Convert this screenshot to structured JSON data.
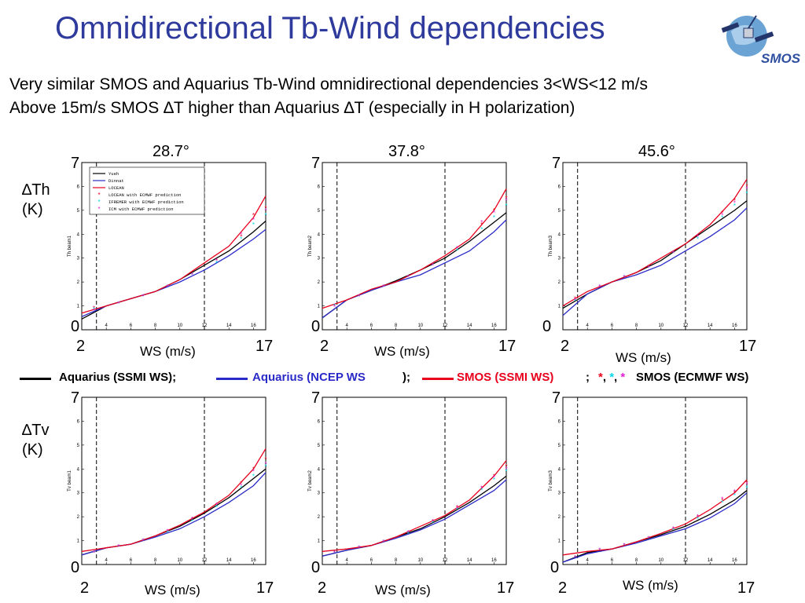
{
  "title": "Omnidirectional Tb-Wind dependencies",
  "logo_text": "SMOS",
  "subtitle1": "Very similar SMOS and Aquarius Tb-Wind omnidirectional dependencies 3<WS<12 m/s",
  "subtitle2": "Above 15m/s SMOS ∆T higher than Aquarius ∆T (especially in H polarization)",
  "angles": [
    "28.7°",
    "37.8°",
    "45.6°"
  ],
  "row_labels": {
    "th": "∆Th",
    "tv": "∆Tv",
    "unit": "(K)"
  },
  "axis_big": {
    "y_top": "7",
    "y_bottom": "0",
    "x_left": "2",
    "x_right": "17",
    "xlabel": "WS (m/s)"
  },
  "legend": {
    "aq_ssmi": "Aquarius (SSMI WS);",
    "aq_ncep": "Aquarius (NCEP WS",
    "aq_ncep_end": ");",
    "smos_ssmi": "SMOS (SSMI WS)",
    "semi": ";",
    "stars": "*, *, *",
    "smos_ecmwf": "SMOS (ECMWF WS)",
    "colors": {
      "black": "#000000",
      "blue": "#2a2ac8",
      "red": "#e8001c",
      "cyan": "#00d8e8",
      "magenta": "#e020d0"
    }
  },
  "inner_legend": [
    "Yueh",
    "Dinnat",
    "LOCEAN",
    "LOCEAN with ECMWF prediction",
    "IFREMER with ECMWF prediction",
    "ICM with ECMWF prediction"
  ],
  "chart_data": [
    {
      "type": "line",
      "polarization": "H",
      "angle": "28.7°",
      "xlim": [
        2,
        17
      ],
      "ylim": [
        0,
        7
      ],
      "ylabel": "Th beam1",
      "vlines": [
        3.2,
        12
      ],
      "x": [
        2,
        4,
        6,
        8,
        10,
        12,
        14,
        16,
        17
      ],
      "series": [
        {
          "name": "Yueh",
          "color": "#000000",
          "values": [
            0.45,
            1.0,
            1.3,
            1.6,
            2.1,
            2.7,
            3.3,
            4.1,
            4.55
          ]
        },
        {
          "name": "Dinnat",
          "color": "#2a2ac8",
          "values": [
            0.55,
            1.0,
            1.3,
            1.6,
            2.0,
            2.5,
            3.1,
            3.8,
            4.2
          ]
        },
        {
          "name": "LOCEAN",
          "color": "#e8001c",
          "values": [
            0.7,
            1.0,
            1.3,
            1.6,
            2.1,
            2.8,
            3.5,
            4.7,
            5.6
          ]
        }
      ],
      "points": [
        {
          "name": "LOCEAN with ECMWF prediction",
          "color": "#e8001c",
          "x": [
            3,
            5,
            7,
            9,
            11,
            13,
            15,
            16,
            17
          ],
          "y": [
            0.9,
            1.1,
            1.4,
            1.8,
            2.3,
            2.9,
            3.9,
            4.8,
            5.1
          ]
        },
        {
          "name": "IFREMER with ECMWF prediction",
          "color": "#00d8e8",
          "x": [
            3,
            5,
            7,
            9,
            11,
            13,
            15,
            16,
            17
          ],
          "y": [
            0.85,
            1.1,
            1.4,
            1.8,
            2.3,
            2.8,
            3.8,
            4.4,
            4.8
          ]
        },
        {
          "name": "ICM with ECMWF prediction",
          "color": "#e020d0",
          "x": [
            3,
            5,
            7,
            9,
            11,
            13,
            15,
            16,
            17
          ],
          "y": [
            0.8,
            1.1,
            1.4,
            1.8,
            2.3,
            2.9,
            4.0,
            4.6,
            5.0
          ]
        }
      ]
    },
    {
      "type": "line",
      "polarization": "H",
      "angle": "37.8°",
      "xlim": [
        2,
        17
      ],
      "ylim": [
        0,
        7
      ],
      "ylabel": "Th beam2",
      "vlines": [
        3.2,
        12
      ],
      "x": [
        2,
        4,
        6,
        8,
        10,
        12,
        14,
        16,
        17
      ],
      "series": [
        {
          "name": "Yueh",
          "color": "#000000",
          "values": [
            0.5,
            1.25,
            1.65,
            2.05,
            2.5,
            3.0,
            3.7,
            4.5,
            4.9
          ]
        },
        {
          "name": "Dinnat",
          "color": "#2a2ac8",
          "values": [
            0.5,
            1.25,
            1.65,
            2.0,
            2.3,
            2.8,
            3.3,
            4.1,
            4.6
          ]
        },
        {
          "name": "LOCEAN",
          "color": "#e8001c",
          "values": [
            0.9,
            1.25,
            1.7,
            2.0,
            2.5,
            3.1,
            3.8,
            5.0,
            5.9
          ]
        }
      ],
      "points": [
        {
          "name": "LOCEAN with ECMWF prediction",
          "color": "#e8001c",
          "x": [
            3,
            5,
            7,
            9,
            11,
            13,
            15,
            16,
            17
          ],
          "y": [
            1.0,
            1.4,
            1.8,
            2.2,
            2.7,
            3.4,
            4.4,
            5.0,
            5.5
          ]
        },
        {
          "name": "IFREMER with ECMWF prediction",
          "color": "#00d8e8",
          "x": [
            3,
            5,
            7,
            9,
            11,
            13,
            15,
            16,
            17
          ],
          "y": [
            1.0,
            1.4,
            1.8,
            2.2,
            2.7,
            3.3,
            4.2,
            4.7,
            5.2
          ]
        },
        {
          "name": "ICM with ECMWF prediction",
          "color": "#e020d0",
          "x": [
            3,
            5,
            7,
            9,
            11,
            13,
            15,
            16,
            17
          ],
          "y": [
            0.95,
            1.4,
            1.8,
            2.2,
            2.7,
            3.4,
            4.5,
            4.9,
            5.4
          ]
        }
      ]
    },
    {
      "type": "line",
      "polarization": "H",
      "angle": "45.6°",
      "xlim": [
        2,
        17
      ],
      "ylim": [
        0,
        7
      ],
      "ylabel": "Th beam3",
      "vlines": [
        3.2,
        12
      ],
      "x": [
        2,
        4,
        6,
        8,
        10,
        12,
        14,
        16,
        17
      ],
      "series": [
        {
          "name": "Yueh",
          "color": "#000000",
          "values": [
            0.9,
            1.5,
            2.0,
            2.4,
            2.9,
            3.6,
            4.3,
            5.0,
            5.4
          ]
        },
        {
          "name": "Dinnat",
          "color": "#2a2ac8",
          "values": [
            0.6,
            1.5,
            2.0,
            2.3,
            2.7,
            3.3,
            3.9,
            4.6,
            5.1
          ]
        },
        {
          "name": "LOCEAN",
          "color": "#e8001c",
          "values": [
            1.0,
            1.6,
            2.0,
            2.4,
            3.0,
            3.6,
            4.4,
            5.5,
            6.3
          ]
        }
      ],
      "points": [
        {
          "name": "LOCEAN with ECMWF prediction",
          "color": "#e8001c",
          "x": [
            3,
            5,
            7,
            9,
            11,
            13,
            15,
            16,
            17
          ],
          "y": [
            1.3,
            1.8,
            2.2,
            2.6,
            3.2,
            3.9,
            4.9,
            5.4,
            6.0
          ]
        },
        {
          "name": "IFREMER with ECMWF prediction",
          "color": "#00d8e8",
          "x": [
            3,
            5,
            7,
            9,
            11,
            13,
            15,
            16,
            17
          ],
          "y": [
            1.2,
            1.8,
            2.2,
            2.6,
            3.2,
            3.8,
            4.7,
            5.2,
            5.7
          ]
        },
        {
          "name": "ICM with ECMWF prediction",
          "color": "#e020d0",
          "x": [
            3,
            5,
            7,
            9,
            11,
            13,
            15,
            16,
            17
          ],
          "y": [
            1.25,
            1.8,
            2.2,
            2.6,
            3.2,
            3.9,
            4.8,
            5.3,
            5.9
          ]
        }
      ]
    },
    {
      "type": "line",
      "polarization": "V",
      "angle": "28.7°",
      "xlim": [
        2,
        17
      ],
      "ylim": [
        0,
        7
      ],
      "ylabel": "Tv beam1",
      "vlines": [
        3.2,
        12
      ],
      "x": [
        2,
        4,
        6,
        8,
        10,
        12,
        14,
        16,
        17
      ],
      "series": [
        {
          "name": "Yueh",
          "color": "#000000",
          "values": [
            0.4,
            0.7,
            0.85,
            1.2,
            1.6,
            2.15,
            2.8,
            3.6,
            4.0
          ]
        },
        {
          "name": "Dinnat",
          "color": "#2a2ac8",
          "values": [
            0.4,
            0.7,
            0.85,
            1.15,
            1.5,
            2.0,
            2.6,
            3.3,
            3.85
          ]
        },
        {
          "name": "LOCEAN",
          "color": "#e8001c",
          "values": [
            0.55,
            0.7,
            0.85,
            1.2,
            1.65,
            2.2,
            2.9,
            4.0,
            4.85
          ]
        }
      ],
      "points": [
        {
          "name": "LOCEAN with ECMWF prediction",
          "color": "#e8001c",
          "x": [
            3,
            5,
            7,
            9,
            11,
            13,
            15,
            16,
            17
          ],
          "y": [
            0.5,
            0.75,
            1.0,
            1.4,
            1.9,
            2.5,
            3.4,
            4.0,
            4.4
          ]
        },
        {
          "name": "IFREMER with ECMWF prediction",
          "color": "#00d8e8",
          "x": [
            3,
            5,
            7,
            9,
            11,
            13,
            15,
            16,
            17
          ],
          "y": [
            0.5,
            0.75,
            1.0,
            1.35,
            1.8,
            2.4,
            3.2,
            3.7,
            4.1
          ]
        },
        {
          "name": "ICM with ECMWF prediction",
          "color": "#e020d0",
          "x": [
            3,
            5,
            7,
            9,
            11,
            13,
            15,
            16,
            17
          ],
          "y": [
            0.5,
            0.75,
            1.0,
            1.4,
            1.9,
            2.5,
            3.3,
            3.9,
            4.2
          ]
        }
      ]
    },
    {
      "type": "line",
      "polarization": "V",
      "angle": "37.8°",
      "xlim": [
        2,
        17
      ],
      "ylim": [
        0,
        7
      ],
      "ylabel": "Tv beam2",
      "vlines": [
        3.2,
        12
      ],
      "x": [
        2,
        4,
        6,
        8,
        10,
        12,
        14,
        16,
        17
      ],
      "series": [
        {
          "name": "Yueh",
          "color": "#000000",
          "values": [
            0.35,
            0.6,
            0.8,
            1.15,
            1.5,
            2.0,
            2.6,
            3.3,
            3.7
          ]
        },
        {
          "name": "Dinnat",
          "color": "#2a2ac8",
          "values": [
            0.35,
            0.6,
            0.8,
            1.1,
            1.45,
            1.9,
            2.5,
            3.1,
            3.55
          ]
        },
        {
          "name": "LOCEAN",
          "color": "#e8001c",
          "values": [
            0.55,
            0.65,
            0.8,
            1.15,
            1.6,
            2.05,
            2.7,
            3.7,
            4.35
          ]
        }
      ],
      "points": [
        {
          "name": "LOCEAN with ECMWF prediction",
          "color": "#e8001c",
          "x": [
            3,
            5,
            7,
            9,
            11,
            13,
            15,
            16,
            17
          ],
          "y": [
            0.5,
            0.7,
            0.95,
            1.35,
            1.8,
            2.4,
            3.2,
            3.7,
            4.1
          ]
        },
        {
          "name": "IFREMER with ECMWF prediction",
          "color": "#00d8e8",
          "x": [
            3,
            5,
            7,
            9,
            11,
            13,
            15,
            16,
            17
          ],
          "y": [
            0.5,
            0.7,
            0.95,
            1.3,
            1.75,
            2.3,
            3.1,
            3.55,
            3.9
          ]
        },
        {
          "name": "ICM with ECMWF prediction",
          "color": "#e020d0",
          "x": [
            3,
            5,
            7,
            9,
            11,
            13,
            15,
            16,
            17
          ],
          "y": [
            0.5,
            0.7,
            0.95,
            1.35,
            1.8,
            2.35,
            3.2,
            3.65,
            4.0
          ]
        }
      ]
    },
    {
      "type": "line",
      "polarization": "V",
      "angle": "45.6°",
      "xlim": [
        2,
        17
      ],
      "ylim": [
        0,
        7
      ],
      "ylabel": "Tv beam3",
      "vlines": [
        3.2,
        12
      ],
      "x": [
        2,
        4,
        6,
        8,
        10,
        12,
        14,
        16,
        17
      ],
      "series": [
        {
          "name": "Yueh",
          "color": "#000000",
          "values": [
            0.1,
            0.5,
            0.65,
            0.95,
            1.25,
            1.6,
            2.1,
            2.7,
            3.1
          ]
        },
        {
          "name": "Dinnat",
          "color": "#2a2ac8",
          "values": [
            0.1,
            0.45,
            0.65,
            0.9,
            1.2,
            1.5,
            1.95,
            2.55,
            3.0
          ]
        },
        {
          "name": "LOCEAN",
          "color": "#e8001c",
          "values": [
            0.4,
            0.55,
            0.65,
            0.95,
            1.3,
            1.7,
            2.3,
            3.0,
            3.55
          ]
        }
      ],
      "points": [
        {
          "name": "LOCEAN with ECMWF prediction",
          "color": "#e8001c",
          "x": [
            3,
            5,
            7,
            9,
            11,
            13,
            15,
            16,
            17
          ],
          "y": [
            0.3,
            0.6,
            0.8,
            1.1,
            1.5,
            2.0,
            2.7,
            3.0,
            3.4
          ]
        },
        {
          "name": "IFREMER with ECMWF prediction",
          "color": "#00d8e8",
          "x": [
            3,
            5,
            7,
            9,
            11,
            13,
            15,
            16,
            17
          ],
          "y": [
            0.3,
            0.6,
            0.8,
            1.1,
            1.45,
            1.9,
            2.6,
            2.9,
            3.2
          ]
        },
        {
          "name": "ICM with ECMWF prediction",
          "color": "#e020d0",
          "x": [
            3,
            5,
            7,
            9,
            11,
            13,
            15,
            16,
            17
          ],
          "y": [
            0.3,
            0.6,
            0.8,
            1.1,
            1.5,
            2.0,
            2.75,
            3.05,
            3.35
          ]
        }
      ]
    }
  ]
}
